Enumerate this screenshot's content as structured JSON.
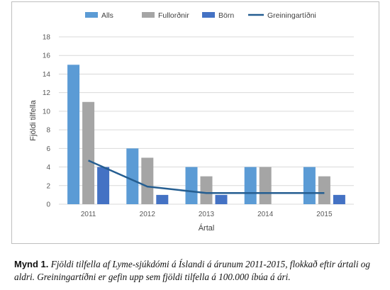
{
  "chart_data": {
    "type": "bar",
    "categories": [
      "2011",
      "2012",
      "2013",
      "2014",
      "2015"
    ],
    "series": [
      {
        "name": "Alls",
        "type": "bar",
        "color": "#5b9bd5",
        "values": [
          15,
          6,
          4,
          4,
          4
        ]
      },
      {
        "name": "Fullorðnir",
        "type": "bar",
        "color": "#a5a5a5",
        "values": [
          11,
          5,
          3,
          4,
          3
        ]
      },
      {
        "name": "Börn",
        "type": "bar",
        "color": "#4472c4",
        "values": [
          4,
          1,
          1,
          0,
          1
        ]
      },
      {
        "name": "Greiningartíðni",
        "type": "line",
        "color": "#255e91",
        "values": [
          4.7,
          1.9,
          1.2,
          1.2,
          1.2
        ]
      }
    ],
    "xlabel": "Ártal",
    "ylabel": "Fjöldi tilfella",
    "ylim": [
      0,
      18
    ],
    "yticks": [
      "0",
      "2",
      "4",
      "6",
      "8",
      "10",
      "12",
      "14",
      "16",
      "18"
    ],
    "grid": true,
    "legend_position": "top"
  },
  "caption": {
    "label": "Mynd 1.",
    "text": "Fjöldi tilfella af Lyme-sjúkdómi á Íslandi á árunum 2011-2015, flokkað eftir ártali og aldri. Greiningartíðni er gefin upp sem fjöldi tilfella á 100.000 íbúa á ári."
  }
}
